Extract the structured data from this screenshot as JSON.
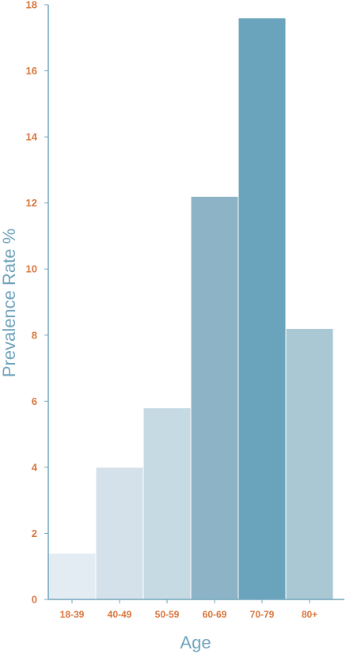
{
  "chart_data": {
    "type": "bar",
    "title": "",
    "xlabel": "Age",
    "ylabel": "Prevalence Rate %",
    "categories": [
      "18-39",
      "40-49",
      "50-59",
      "60-69",
      "70-79",
      "80+"
    ],
    "values": [
      1.4,
      4.0,
      5.8,
      12.2,
      17.6,
      8.2
    ],
    "ylim": [
      0,
      18
    ],
    "yticks": [
      "0",
      "2",
      "4",
      "6",
      "8",
      "10",
      "12",
      "14",
      "16",
      "18"
    ],
    "bar_colors": [
      "#e3ebf3",
      "#d5e1ea",
      "#c6dae4",
      "#8cb3c6",
      "#6aa4bc",
      "#a9c8d4"
    ],
    "axis_color": "#6fa3bb",
    "tick_color": "#d8743a",
    "grid": false
  }
}
